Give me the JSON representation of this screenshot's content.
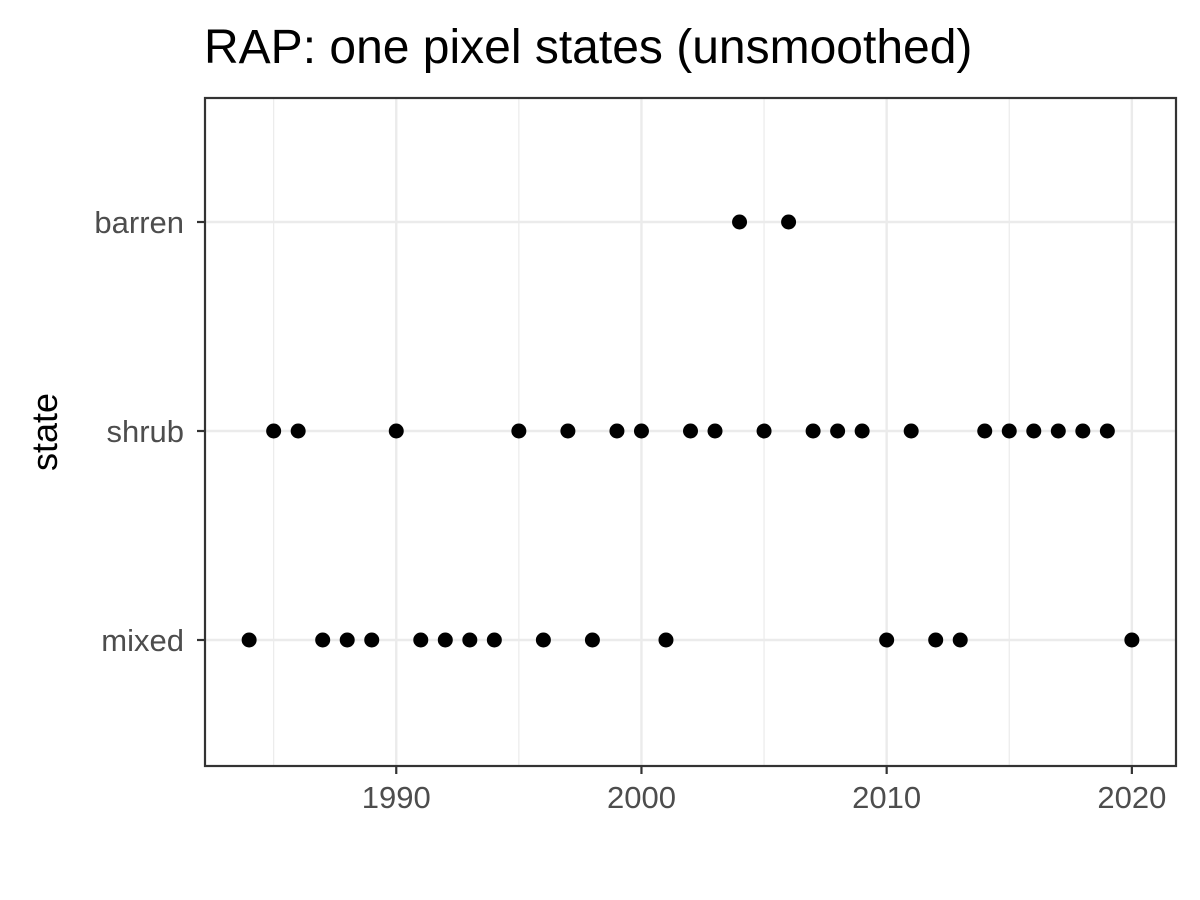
{
  "chart_data": {
    "type": "scatter",
    "title": "RAP: one pixel states (unsmoothed)",
    "xlabel": "",
    "ylabel": "state",
    "xlim": [
      1982.2,
      2021.8
    ],
    "x_ticks": [
      1990,
      2000,
      2010,
      2020
    ],
    "x_minor_ticks": [
      1985,
      1995,
      2005,
      2015
    ],
    "categories": [
      "mixed",
      "shrub",
      "barren"
    ],
    "grid": true,
    "theme": "bw",
    "colors": {
      "point": "#000000",
      "grid": "#ebebeb",
      "panel_border": "#333333",
      "tick_label": "#4d4d4d"
    },
    "points": [
      {
        "x": 1984,
        "y": "mixed"
      },
      {
        "x": 1985,
        "y": "shrub"
      },
      {
        "x": 1986,
        "y": "shrub"
      },
      {
        "x": 1987,
        "y": "mixed"
      },
      {
        "x": 1988,
        "y": "mixed"
      },
      {
        "x": 1989,
        "y": "mixed"
      },
      {
        "x": 1990,
        "y": "shrub"
      },
      {
        "x": 1991,
        "y": "mixed"
      },
      {
        "x": 1992,
        "y": "mixed"
      },
      {
        "x": 1993,
        "y": "mixed"
      },
      {
        "x": 1994,
        "y": "mixed"
      },
      {
        "x": 1995,
        "y": "shrub"
      },
      {
        "x": 1996,
        "y": "mixed"
      },
      {
        "x": 1997,
        "y": "shrub"
      },
      {
        "x": 1998,
        "y": "mixed"
      },
      {
        "x": 1999,
        "y": "shrub"
      },
      {
        "x": 2000,
        "y": "shrub"
      },
      {
        "x": 2001,
        "y": "mixed"
      },
      {
        "x": 2002,
        "y": "shrub"
      },
      {
        "x": 2003,
        "y": "shrub"
      },
      {
        "x": 2004,
        "y": "barren"
      },
      {
        "x": 2005,
        "y": "shrub"
      },
      {
        "x": 2006,
        "y": "barren"
      },
      {
        "x": 2007,
        "y": "shrub"
      },
      {
        "x": 2008,
        "y": "shrub"
      },
      {
        "x": 2009,
        "y": "shrub"
      },
      {
        "x": 2010,
        "y": "mixed"
      },
      {
        "x": 2011,
        "y": "shrub"
      },
      {
        "x": 2012,
        "y": "mixed"
      },
      {
        "x": 2013,
        "y": "mixed"
      },
      {
        "x": 2014,
        "y": "shrub"
      },
      {
        "x": 2015,
        "y": "shrub"
      },
      {
        "x": 2016,
        "y": "shrub"
      },
      {
        "x": 2017,
        "y": "shrub"
      },
      {
        "x": 2018,
        "y": "shrub"
      },
      {
        "x": 2019,
        "y": "shrub"
      },
      {
        "x": 2020,
        "y": "mixed"
      }
    ]
  }
}
